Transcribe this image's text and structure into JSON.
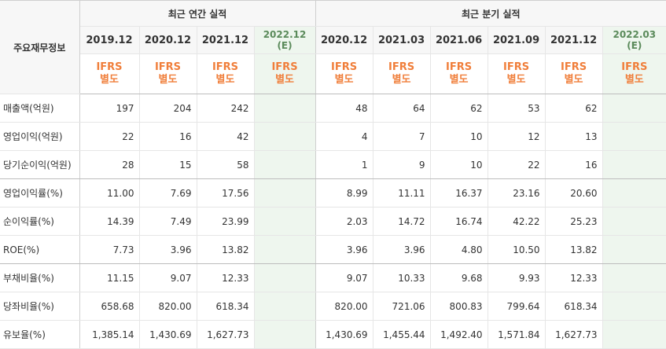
{
  "header": {
    "row_label": "주요재무정보",
    "annual_title": "최근 연간 실적",
    "quarter_title": "최근 분기 실적",
    "annual_periods": [
      "2019.12",
      "2020.12",
      "2021.12",
      "2022.12\n(E)"
    ],
    "quarter_periods": [
      "2020.12",
      "2021.03",
      "2021.06",
      "2021.09",
      "2021.12",
      "2022.03\n(E)"
    ],
    "standard_label": "IFRS\n별도",
    "estimate_standard_label": "IFRS\n별도"
  },
  "rows": [
    {
      "label": "매출액(억원)",
      "annual": [
        "197",
        "204",
        "242",
        ""
      ],
      "quarter": [
        "48",
        "64",
        "62",
        "53",
        "62",
        ""
      ]
    },
    {
      "label": "영업이익(억원)",
      "annual": [
        "22",
        "16",
        "42",
        ""
      ],
      "quarter": [
        "4",
        "7",
        "10",
        "12",
        "13",
        ""
      ]
    },
    {
      "label": "당기순이익(억원)",
      "annual": [
        "28",
        "15",
        "58",
        ""
      ],
      "quarter": [
        "1",
        "9",
        "10",
        "22",
        "16",
        ""
      ]
    },
    {
      "label": "영업이익률(%)",
      "annual": [
        "11.00",
        "7.69",
        "17.56",
        ""
      ],
      "quarter": [
        "8.99",
        "11.11",
        "16.37",
        "23.16",
        "20.60",
        ""
      ]
    },
    {
      "label": "순이익률(%)",
      "annual": [
        "14.39",
        "7.49",
        "23.99",
        ""
      ],
      "quarter": [
        "2.03",
        "14.72",
        "16.74",
        "42.22",
        "25.23",
        ""
      ]
    },
    {
      "label": "ROE(%)",
      "annual": [
        "7.73",
        "3.96",
        "13.82",
        ""
      ],
      "quarter": [
        "3.96",
        "3.96",
        "4.80",
        "10.50",
        "13.82",
        ""
      ]
    },
    {
      "label": "부채비율(%)",
      "annual": [
        "11.15",
        "9.07",
        "12.33",
        ""
      ],
      "quarter": [
        "9.07",
        "10.33",
        "9.68",
        "9.93",
        "12.33",
        ""
      ]
    },
    {
      "label": "당좌비율(%)",
      "annual": [
        "658.68",
        "820.00",
        "618.34",
        ""
      ],
      "quarter": [
        "820.00",
        "721.06",
        "800.83",
        "799.64",
        "618.34",
        ""
      ]
    },
    {
      "label": "유보율(%)",
      "annual": [
        "1,385.14",
        "1,430.69",
        "1,627.73",
        ""
      ],
      "quarter": [
        "1,430.69",
        "1,455.44",
        "1,492.40",
        "1,571.84",
        "1,627.73",
        ""
      ]
    }
  ],
  "colors": {
    "standard_text": "#f07e3a",
    "estimate_background": "#eef6ee",
    "header_background": "#f7f7f7"
  }
}
